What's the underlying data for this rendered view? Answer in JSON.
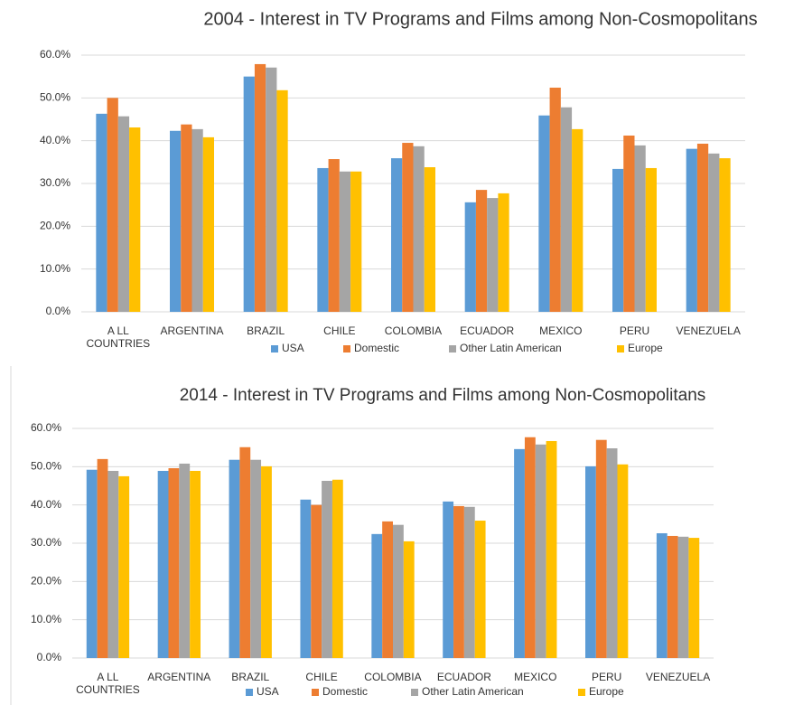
{
  "chart_data": [
    {
      "type": "bar",
      "title": "2004 - Interest in TV Programs and Films among Non-Cosmopolitans",
      "categories": [
        "A LL COUNTRIES",
        "ARGENTINA",
        "BRAZIL",
        "CHILE",
        "COLOMBIA",
        "ECUADOR",
        "MEXICO",
        "PERU",
        "VENEZUELA"
      ],
      "series": [
        {
          "name": "USA",
          "color": "#5b9bd5",
          "values": [
            46.3,
            42.3,
            55.0,
            33.6,
            35.9,
            25.6,
            45.9,
            33.4,
            38.1
          ]
        },
        {
          "name": "Domestic",
          "color": "#ed7d31",
          "values": [
            50.0,
            43.8,
            57.9,
            35.7,
            39.5,
            28.5,
            52.4,
            41.2,
            39.3
          ]
        },
        {
          "name": "Other Latin American",
          "color": "#a5a5a5",
          "values": [
            45.7,
            42.7,
            57.1,
            32.8,
            38.7,
            26.6,
            47.8,
            38.9,
            37.0
          ]
        },
        {
          "name": "Europe",
          "color": "#ffc000",
          "values": [
            43.1,
            40.8,
            51.8,
            32.8,
            33.8,
            27.7,
            42.7,
            33.6,
            35.9
          ]
        }
      ],
      "ylim": [
        0,
        60
      ],
      "yticks": [
        {
          "value": 0,
          "label": "0.0%"
        },
        {
          "value": 10,
          "label": "10.0%"
        },
        {
          "value": 20,
          "label": "20.0%"
        },
        {
          "value": 30,
          "label": "30.0%"
        },
        {
          "value": 40,
          "label": "40.0%"
        },
        {
          "value": 50,
          "label": "50.0%"
        },
        {
          "value": 60,
          "label": "60.0%"
        }
      ],
      "grid": true,
      "legend": "bottom"
    },
    {
      "type": "bar",
      "title": "2014 - Interest in TV Programs and Films among Non-Cosmopolitans",
      "categories": [
        "A LL COUNTRIES",
        "ARGENTINA",
        "BRAZIL",
        "CHILE",
        "COLOMBIA",
        "ECUADOR",
        "MEXICO",
        "PERU",
        "VENEZUELA"
      ],
      "series": [
        {
          "name": "USA",
          "color": "#5b9bd5",
          "values": [
            49.2,
            48.9,
            51.8,
            41.4,
            32.4,
            40.9,
            54.6,
            50.1,
            32.6
          ]
        },
        {
          "name": "Domestic",
          "color": "#ed7d31",
          "values": [
            52.0,
            49.6,
            55.1,
            40.0,
            35.7,
            39.7,
            57.7,
            57.0,
            31.9
          ]
        },
        {
          "name": "Other Latin American",
          "color": "#a5a5a5",
          "values": [
            48.9,
            50.8,
            51.8,
            46.3,
            34.8,
            39.5,
            55.8,
            54.8,
            31.7
          ]
        },
        {
          "name": "Europe",
          "color": "#ffc000",
          "values": [
            47.5,
            48.9,
            50.1,
            46.6,
            30.5,
            35.9,
            56.7,
            50.6,
            31.4
          ]
        }
      ],
      "ylim": [
        0,
        60
      ],
      "yticks": [
        {
          "value": 0,
          "label": "0.0%"
        },
        {
          "value": 10,
          "label": "10.0%"
        },
        {
          "value": 20,
          "label": "20.0%"
        },
        {
          "value": 30,
          "label": "30.0%"
        },
        {
          "value": 40,
          "label": "40.0%"
        },
        {
          "value": 50,
          "label": "50.0%"
        },
        {
          "value": 60,
          "label": "60.0%"
        }
      ],
      "grid": true,
      "legend": "bottom"
    }
  ]
}
